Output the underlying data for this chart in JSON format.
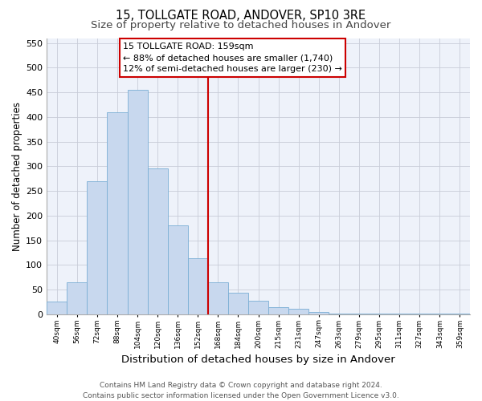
{
  "title": "15, TOLLGATE ROAD, ANDOVER, SP10 3RE",
  "subtitle": "Size of property relative to detached houses in Andover",
  "xlabel": "Distribution of detached houses by size in Andover",
  "ylabel": "Number of detached properties",
  "bar_labels": [
    "40sqm",
    "56sqm",
    "72sqm",
    "88sqm",
    "104sqm",
    "120sqm",
    "136sqm",
    "152sqm",
    "168sqm",
    "184sqm",
    "200sqm",
    "215sqm",
    "231sqm",
    "247sqm",
    "263sqm",
    "279sqm",
    "295sqm",
    "311sqm",
    "327sqm",
    "343sqm",
    "359sqm"
  ],
  "bar_values": [
    25,
    65,
    270,
    410,
    455,
    295,
    180,
    113,
    65,
    43,
    27,
    15,
    11,
    5,
    2,
    2,
    1,
    1,
    1,
    1,
    1
  ],
  "bar_color": "#c8d8ee",
  "bar_edge_color": "#7aaed4",
  "vline_x": 7.5,
  "vline_color": "#cc0000",
  "ylim": [
    0,
    560
  ],
  "yticks": [
    0,
    50,
    100,
    150,
    200,
    250,
    300,
    350,
    400,
    450,
    500,
    550
  ],
  "axes_bg_color": "#eef2fa",
  "grid_color": "#c8ccd8",
  "annotation_title": "15 TOLLGATE ROAD: 159sqm",
  "annotation_line1": "← 88% of detached houses are smaller (1,740)",
  "annotation_line2": "12% of semi-detached houses are larger (230) →",
  "annotation_box_facecolor": "#ffffff",
  "annotation_box_edgecolor": "#cc0000",
  "footer_line1": "Contains HM Land Registry data © Crown copyright and database right 2024.",
  "footer_line2": "Contains public sector information licensed under the Open Government Licence v3.0.",
  "title_fontsize": 10.5,
  "subtitle_fontsize": 9.5,
  "ylabel_fontsize": 8.5,
  "xlabel_fontsize": 9.5,
  "annotation_fontsize": 8,
  "footer_fontsize": 6.5,
  "tick_fontsize": 8,
  "xtick_fontsize": 6.5
}
